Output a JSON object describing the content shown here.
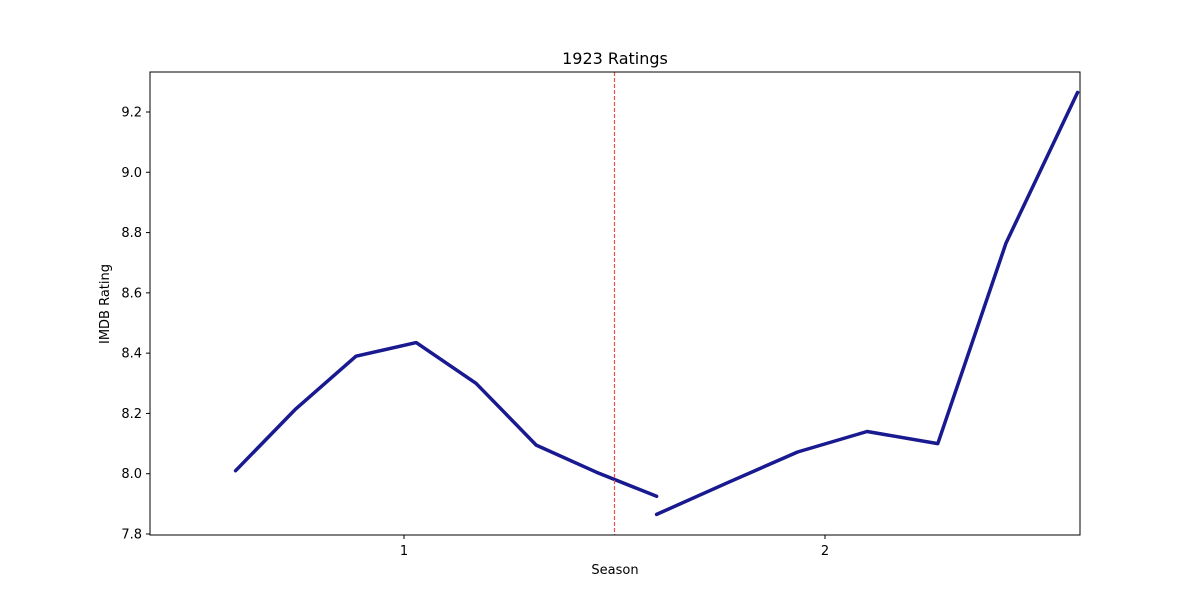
{
  "chart_data": {
    "type": "line",
    "title": "1923 Ratings",
    "xlabel": "Season",
    "ylabel": "IMDB Rating",
    "ylim": [
      7.8,
      9.3
    ],
    "yticks": [
      "7.8",
      "8.0",
      "8.2",
      "8.4",
      "8.6",
      "8.8",
      "9.0",
      "9.2"
    ],
    "xticks": [
      {
        "label": "1",
        "value": 1
      },
      {
        "label": "2",
        "value": 2
      }
    ],
    "xlim": [
      0.4,
      2.6
    ],
    "grid": false,
    "season_divider": 1.5,
    "series": [
      {
        "values": [
          [
            0.6,
            8.01
          ],
          [
            0.743,
            8.215
          ],
          [
            0.886,
            8.39
          ],
          [
            1.029,
            8.435
          ],
          [
            1.171,
            8.3
          ],
          [
            1.314,
            8.095
          ],
          [
            1.457,
            8.005
          ],
          [
            1.6,
            7.925
          ]
        ]
      },
      {
        "values": [
          [
            1.6,
            7.865
          ],
          [
            1.768,
            7.97
          ],
          [
            1.935,
            8.072
          ],
          [
            2.1,
            8.14
          ],
          [
            2.268,
            8.1
          ],
          [
            2.43,
            8.765
          ],
          [
            2.6,
            9.265
          ]
        ]
      }
    ],
    "colors": {
      "line": "#191990",
      "divider": "#e8524a",
      "axis": "#000000"
    }
  }
}
